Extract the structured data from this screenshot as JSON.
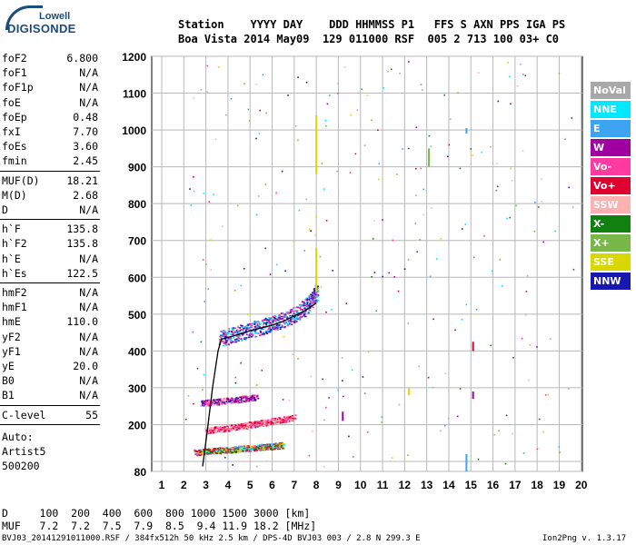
{
  "logo": {
    "top": "Lowell",
    "main": "DIGISONDE"
  },
  "header": {
    "row1": "Station    YYYY DAY    DDD HHMMSS P1   FFS S AXN PPS IGA PS",
    "row2": "Boa Vista 2014 May09  129 011000 RSF  005 2 713 100 03+ C0"
  },
  "params_group1": [
    {
      "label": "foF2",
      "value": "6.800"
    },
    {
      "label": "foF1",
      "value": "N/A"
    },
    {
      "label": "foF1p",
      "value": "N/A"
    },
    {
      "label": "foE",
      "value": "N/A"
    },
    {
      "label": "foEp",
      "value": "0.48"
    },
    {
      "label": "fxI",
      "value": "7.70"
    },
    {
      "label": "foEs",
      "value": "3.60"
    },
    {
      "label": "fmin",
      "value": "2.45"
    }
  ],
  "params_group2": [
    {
      "label": "MUF(D)",
      "value": "18.21"
    },
    {
      "label": "M(D)",
      "value": "2.68"
    },
    {
      "label": "D",
      "value": "N/A"
    }
  ],
  "params_group3": [
    {
      "label": "h`F",
      "value": "135.8"
    },
    {
      "label": "h`F2",
      "value": "135.8"
    },
    {
      "label": "h`E",
      "value": "N/A"
    },
    {
      "label": "h`Es",
      "value": "122.5"
    }
  ],
  "params_group4": [
    {
      "label": "hmF2",
      "value": "N/A"
    },
    {
      "label": "hmF1",
      "value": "N/A"
    },
    {
      "label": "hmE",
      "value": "110.0"
    },
    {
      "label": "yF2",
      "value": "N/A"
    },
    {
      "label": "yF1",
      "value": "N/A"
    },
    {
      "label": "yE",
      "value": "20.0"
    },
    {
      "label": "B0",
      "value": "N/A"
    },
    {
      "label": "B1",
      "value": "N/A"
    }
  ],
  "params_group5": [
    {
      "label": "C-level",
      "value": "55"
    }
  ],
  "auto": {
    "line1": "Auto:",
    "line2": "Artist5",
    "line3": "500200"
  },
  "legend": [
    {
      "label": "NoVal",
      "color": "#a8a8a8"
    },
    {
      "label": "NNE",
      "color": "#00e8ff"
    },
    {
      "label": "E",
      "color": "#3ca4f0"
    },
    {
      "label": "W",
      "color": "#a000a0"
    },
    {
      "label": "Vo-",
      "color": "#ff3aa0"
    },
    {
      "label": "Vo+",
      "color": "#e00030"
    },
    {
      "label": "SSW",
      "color": "#ffb0b0"
    },
    {
      "label": "X-",
      "color": "#108010"
    },
    {
      "label": "X+",
      "color": "#78b848"
    },
    {
      "label": "SSE",
      "color": "#d8d800"
    },
    {
      "label": "NNW",
      "color": "#1818b0"
    }
  ],
  "bottom": {
    "d_row": "D     100  200  400  600  800 1000 1500 3000 [km]",
    "muf_row": "MUF   7.2  7.2  7.5  7.9  8.5  9.4 11.9 18.2 [MHz]",
    "footer_left": "BVJ03_20141291011000.RSF / 384fx512h 50 kHz 2.5 km / DPS-4D BVJ03 003 / 2.8 N 299.3 E",
    "footer_right": "Ion2Png v. 1.3.17"
  },
  "chart_data": {
    "type": "scatter",
    "title": "",
    "xlabel": "",
    "ylabel": "",
    "xlim": [
      1,
      20
    ],
    "ylim": [
      80,
      1200
    ],
    "x_ticks": [
      1,
      2,
      3,
      4,
      5,
      6,
      7,
      8,
      9,
      10,
      11,
      12,
      13,
      14,
      15,
      16,
      17,
      18,
      19,
      20
    ],
    "y_ticks": [
      80,
      100,
      200,
      300,
      400,
      500,
      600,
      700,
      800,
      900,
      1000,
      1100,
      1200
    ],
    "y_tick_labels": [
      "80",
      "",
      "200",
      "300",
      "400",
      "500",
      "600",
      "700",
      "800",
      "900",
      "1000",
      "1100",
      "1200"
    ],
    "grid": true,
    "legend_placement": "right",
    "clusters": [
      {
        "name": "F-trace",
        "color_mix": [
          "#1818b0",
          "#00e8ff",
          "#3ca4f0",
          "#a000a0",
          "#ff3aa0"
        ],
        "points": [
          [
            3.6,
            435
          ],
          [
            4.0,
            440
          ],
          [
            4.5,
            450
          ],
          [
            5.0,
            458
          ],
          [
            5.5,
            465
          ],
          [
            6.0,
            475
          ],
          [
            6.5,
            485
          ],
          [
            7.0,
            500
          ],
          [
            7.5,
            520
          ],
          [
            7.8,
            540
          ],
          [
            8.0,
            560
          ]
        ]
      },
      {
        "name": "Es-trace-lower",
        "color_mix": [
          "#ff3aa0",
          "#e00030",
          "#00e8ff",
          "#d8d800",
          "#108010"
        ],
        "points": [
          [
            2.5,
            125
          ],
          [
            3.0,
            128
          ],
          [
            3.5,
            130
          ],
          [
            4.0,
            132
          ],
          [
            4.5,
            135
          ],
          [
            5.0,
            137
          ],
          [
            5.5,
            140
          ],
          [
            6.0,
            142
          ],
          [
            6.5,
            145
          ]
        ]
      },
      {
        "name": "Es-trace-upper",
        "color_mix": [
          "#ff3aa0",
          "#a000a0",
          "#ffb0b0",
          "#1818b0"
        ],
        "points": [
          [
            2.8,
            260
          ],
          [
            3.3,
            262
          ],
          [
            3.8,
            265
          ],
          [
            4.3,
            268
          ],
          [
            4.8,
            272
          ],
          [
            5.3,
            275
          ]
        ]
      },
      {
        "name": "Es-trace-mid",
        "color_mix": [
          "#ff3aa0",
          "#ffb0b0",
          "#e00030"
        ],
        "points": [
          [
            3.0,
            185
          ],
          [
            3.5,
            188
          ],
          [
            4.0,
            192
          ],
          [
            4.5,
            196
          ],
          [
            5.0,
            200
          ],
          [
            5.5,
            205
          ],
          [
            6.0,
            210
          ],
          [
            6.5,
            215
          ],
          [
            7.0,
            220
          ]
        ]
      }
    ],
    "trace_line": {
      "color": "#000000",
      "points": [
        [
          2.85,
          90
        ],
        [
          2.95,
          130
        ],
        [
          3.1,
          200
        ],
        [
          3.3,
          300
        ],
        [
          3.55,
          400
        ],
        [
          3.7,
          432
        ],
        [
          4.2,
          440
        ],
        [
          5.0,
          455
        ],
        [
          6.0,
          470
        ],
        [
          6.5,
          480
        ],
        [
          7.0,
          495
        ],
        [
          7.5,
          510
        ],
        [
          8.0,
          530
        ]
      ]
    }
  }
}
